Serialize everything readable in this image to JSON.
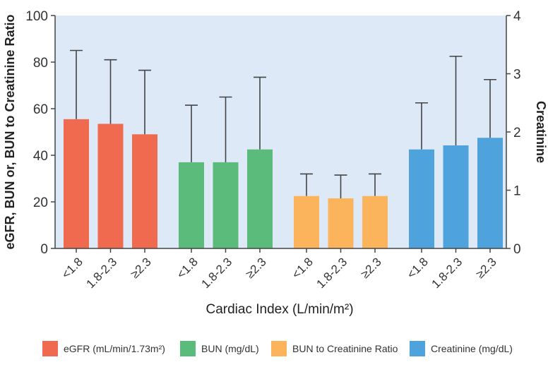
{
  "chart_data": {
    "type": "bar",
    "xlabel": "Cardiac Index (L/min/m²)",
    "ylabel": "eGFR, BUN or, BUN to Creatinine Ratio",
    "ylabel_right": "Creatinine",
    "ylim": [
      0,
      100
    ],
    "ylim_right": [
      0,
      4
    ],
    "yticks": [
      "0",
      "20",
      "40",
      "60",
      "80",
      "100"
    ],
    "yticks_right": [
      "0",
      "1",
      "2",
      "3",
      "4"
    ],
    "grid": false,
    "legend_position": "bottom",
    "groups": [
      {
        "name": "eGFR (mL/min/1.73m²)",
        "color": "#f06a50",
        "axis": "left",
        "categories": [
          "<1.8",
          "1.8-2.3",
          "≥2.3"
        ],
        "values": [
          55.5,
          53.5,
          49
        ],
        "error_upper": [
          85,
          81,
          76.5
        ]
      },
      {
        "name": "BUN (mg/dL)",
        "color": "#5bbb7b",
        "axis": "left",
        "categories": [
          "<1.8",
          "1.8-2.3",
          "≥2.3"
        ],
        "values": [
          37,
          37,
          42.5
        ],
        "error_upper": [
          61.5,
          65,
          73.5
        ]
      },
      {
        "name": "BUN to Creatinine Ratio",
        "color": "#fbb45b",
        "axis": "left",
        "categories": [
          "<1.8",
          "1.8-2.3",
          "≥2.3"
        ],
        "values": [
          22.5,
          21.5,
          22.5
        ],
        "error_upper": [
          32,
          31.5,
          32
        ]
      },
      {
        "name": "Creatinine (mg/dL)",
        "color": "#4ea3dc",
        "axis": "right",
        "categories": [
          "<1.8",
          "1.8-2.3",
          "≥2.3"
        ],
        "values": [
          1.7,
          1.77,
          1.9
        ],
        "error_upper": [
          2.5,
          3.3,
          2.9
        ]
      }
    ]
  },
  "colors": {
    "plot_background": "#dde9f6",
    "axis": "#444444"
  }
}
